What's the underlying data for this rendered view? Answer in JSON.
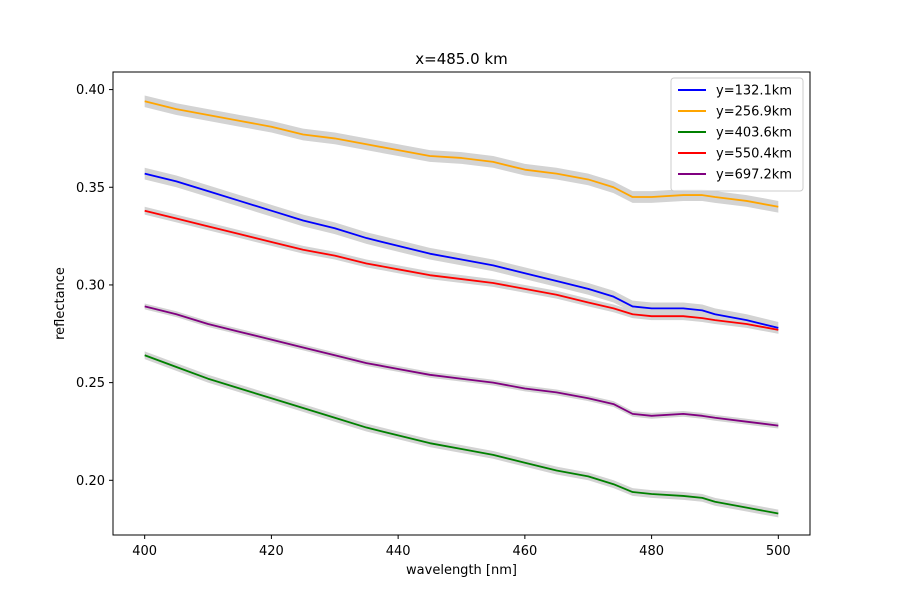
{
  "chart_data": {
    "type": "line",
    "title": "x=485.0 km",
    "xlabel": "wavelength [nm]",
    "ylabel": "reflectance",
    "xlim": [
      395,
      505
    ],
    "ylim": [
      0.172,
      0.409
    ],
    "xticks": [
      400,
      420,
      440,
      460,
      480,
      500
    ],
    "yticks": [
      0.2,
      0.25,
      0.3,
      0.35,
      0.4
    ],
    "xtick_labels": [
      "400",
      "420",
      "440",
      "460",
      "480",
      "500"
    ],
    "ytick_labels": [
      "0.20",
      "0.25",
      "0.30",
      "0.35",
      "0.40"
    ],
    "grid": false,
    "legend_position": "top-right",
    "band_color": "#d3d3d3",
    "series": [
      {
        "name": "y=132.1km",
        "color": "#0000ff",
        "band": 0.003,
        "x": [
          400,
          405,
          410,
          415,
          420,
          425,
          430,
          435,
          440,
          445,
          450,
          455,
          460,
          465,
          470,
          474,
          477,
          480,
          485,
          488,
          490,
          495,
          500
        ],
        "y": [
          0.357,
          0.353,
          0.348,
          0.343,
          0.338,
          0.333,
          0.329,
          0.324,
          0.32,
          0.316,
          0.313,
          0.31,
          0.306,
          0.302,
          0.298,
          0.294,
          0.289,
          0.288,
          0.288,
          0.287,
          0.285,
          0.282,
          0.278
        ]
      },
      {
        "name": "y=256.9km",
        "color": "#ffa500",
        "band": 0.003,
        "x": [
          400,
          405,
          410,
          415,
          420,
          425,
          430,
          435,
          440,
          445,
          450,
          455,
          460,
          465,
          470,
          474,
          477,
          480,
          485,
          488,
          490,
          495,
          500
        ],
        "y": [
          0.394,
          0.39,
          0.387,
          0.384,
          0.381,
          0.377,
          0.375,
          0.372,
          0.369,
          0.366,
          0.365,
          0.363,
          0.359,
          0.357,
          0.354,
          0.35,
          0.345,
          0.345,
          0.346,
          0.346,
          0.345,
          0.343,
          0.34
        ]
      },
      {
        "name": "y=403.6km",
        "color": "#008000",
        "band": 0.002,
        "x": [
          400,
          405,
          410,
          415,
          420,
          425,
          430,
          435,
          440,
          445,
          450,
          455,
          460,
          465,
          470,
          474,
          477,
          480,
          485,
          488,
          490,
          495,
          500
        ],
        "y": [
          0.264,
          0.258,
          0.252,
          0.247,
          0.242,
          0.237,
          0.232,
          0.227,
          0.223,
          0.219,
          0.216,
          0.213,
          0.209,
          0.205,
          0.202,
          0.198,
          0.194,
          0.193,
          0.192,
          0.191,
          0.189,
          0.186,
          0.183
        ]
      },
      {
        "name": "y=550.4km",
        "color": "#ff0000",
        "band": 0.002,
        "x": [
          400,
          405,
          410,
          415,
          420,
          425,
          430,
          435,
          440,
          445,
          450,
          455,
          460,
          465,
          470,
          474,
          477,
          480,
          485,
          488,
          490,
          495,
          500
        ],
        "y": [
          0.338,
          0.334,
          0.33,
          0.326,
          0.322,
          0.318,
          0.315,
          0.311,
          0.308,
          0.305,
          0.303,
          0.301,
          0.298,
          0.295,
          0.291,
          0.288,
          0.285,
          0.284,
          0.284,
          0.283,
          0.282,
          0.28,
          0.277
        ]
      },
      {
        "name": "y=697.2km",
        "color": "#800080",
        "band": 0.0015,
        "x": [
          400,
          405,
          410,
          415,
          420,
          425,
          430,
          435,
          440,
          445,
          450,
          455,
          460,
          465,
          470,
          474,
          477,
          480,
          485,
          488,
          490,
          495,
          500
        ],
        "y": [
          0.289,
          0.285,
          0.28,
          0.276,
          0.272,
          0.268,
          0.264,
          0.26,
          0.257,
          0.254,
          0.252,
          0.25,
          0.247,
          0.245,
          0.242,
          0.239,
          0.234,
          0.233,
          0.234,
          0.233,
          0.232,
          0.23,
          0.228
        ]
      }
    ]
  }
}
